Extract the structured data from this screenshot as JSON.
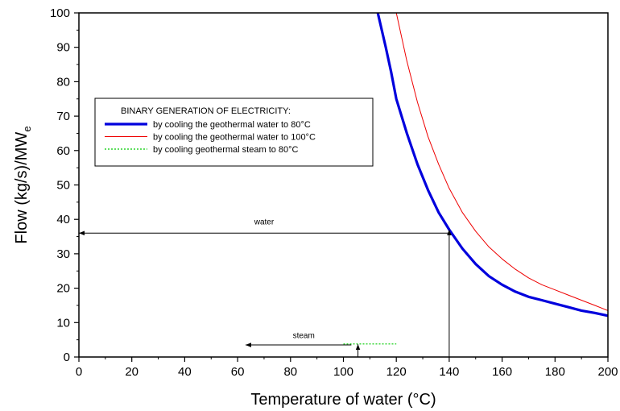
{
  "chart_data": {
    "type": "line",
    "xlabel": "Temperature of water (°C)",
    "ylabel": "Flow (kg/s)/MW",
    "ylabel_subscript": "e",
    "xlim": [
      0,
      200
    ],
    "ylim": [
      0,
      100
    ],
    "x_ticks": [
      0,
      20,
      40,
      60,
      80,
      100,
      120,
      140,
      160,
      180,
      200
    ],
    "y_ticks": [
      0,
      10,
      20,
      30,
      40,
      50,
      60,
      70,
      80,
      90,
      100
    ],
    "grid": false,
    "legend": {
      "title": "BINARY GENERATION OF ELECTRICITY:",
      "placement": "upper-left"
    },
    "series": [
      {
        "name": "by cooling the geothermal water to 80°C",
        "style": "solid-thick",
        "color": "#0000dd",
        "x": [
          113,
          116,
          118,
          120,
          124,
          128,
          132,
          136,
          140,
          145,
          150,
          155,
          160,
          165,
          170,
          175,
          180,
          185,
          190,
          195,
          200
        ],
        "y": [
          100,
          90,
          83,
          75,
          65,
          56,
          48.5,
          42,
          37,
          31.5,
          27,
          23.5,
          21,
          19,
          17.5,
          16.5,
          15.5,
          14.5,
          13.5,
          12.8,
          12
        ]
      },
      {
        "name": "by cooling the geothermal water to 100°C",
        "style": "solid-thin",
        "color": "#ee0000",
        "x": [
          120,
          124,
          128,
          132,
          136,
          140,
          145,
          150,
          155,
          160,
          165,
          170,
          175,
          180,
          185,
          190,
          195,
          200
        ],
        "y": [
          100,
          86,
          74,
          64,
          56,
          49,
          42,
          36.5,
          32,
          28.5,
          25.5,
          23,
          21,
          19.5,
          18,
          16.5,
          15,
          13.5
        ]
      },
      {
        "name": "by cooling geothermal steam to 80°C",
        "style": "dotted",
        "color": "#00cc00",
        "x": [
          100,
          120
        ],
        "y": [
          3.8,
          3.8
        ]
      }
    ],
    "annotations": [
      {
        "text": "water",
        "from": [
          140,
          36
        ],
        "to": [
          0,
          36
        ],
        "label_x": 70,
        "label_y": 38.5
      },
      {
        "text": "",
        "from": [
          140,
          0
        ],
        "to": [
          140,
          37
        ]
      },
      {
        "text": "steam",
        "from": [
          103,
          3.5
        ],
        "to": [
          63,
          3.5
        ],
        "label_x": 85,
        "label_y": 5.5
      },
      {
        "text": "",
        "from": [
          105.5,
          0
        ],
        "to": [
          105.5,
          3.7
        ]
      }
    ]
  }
}
